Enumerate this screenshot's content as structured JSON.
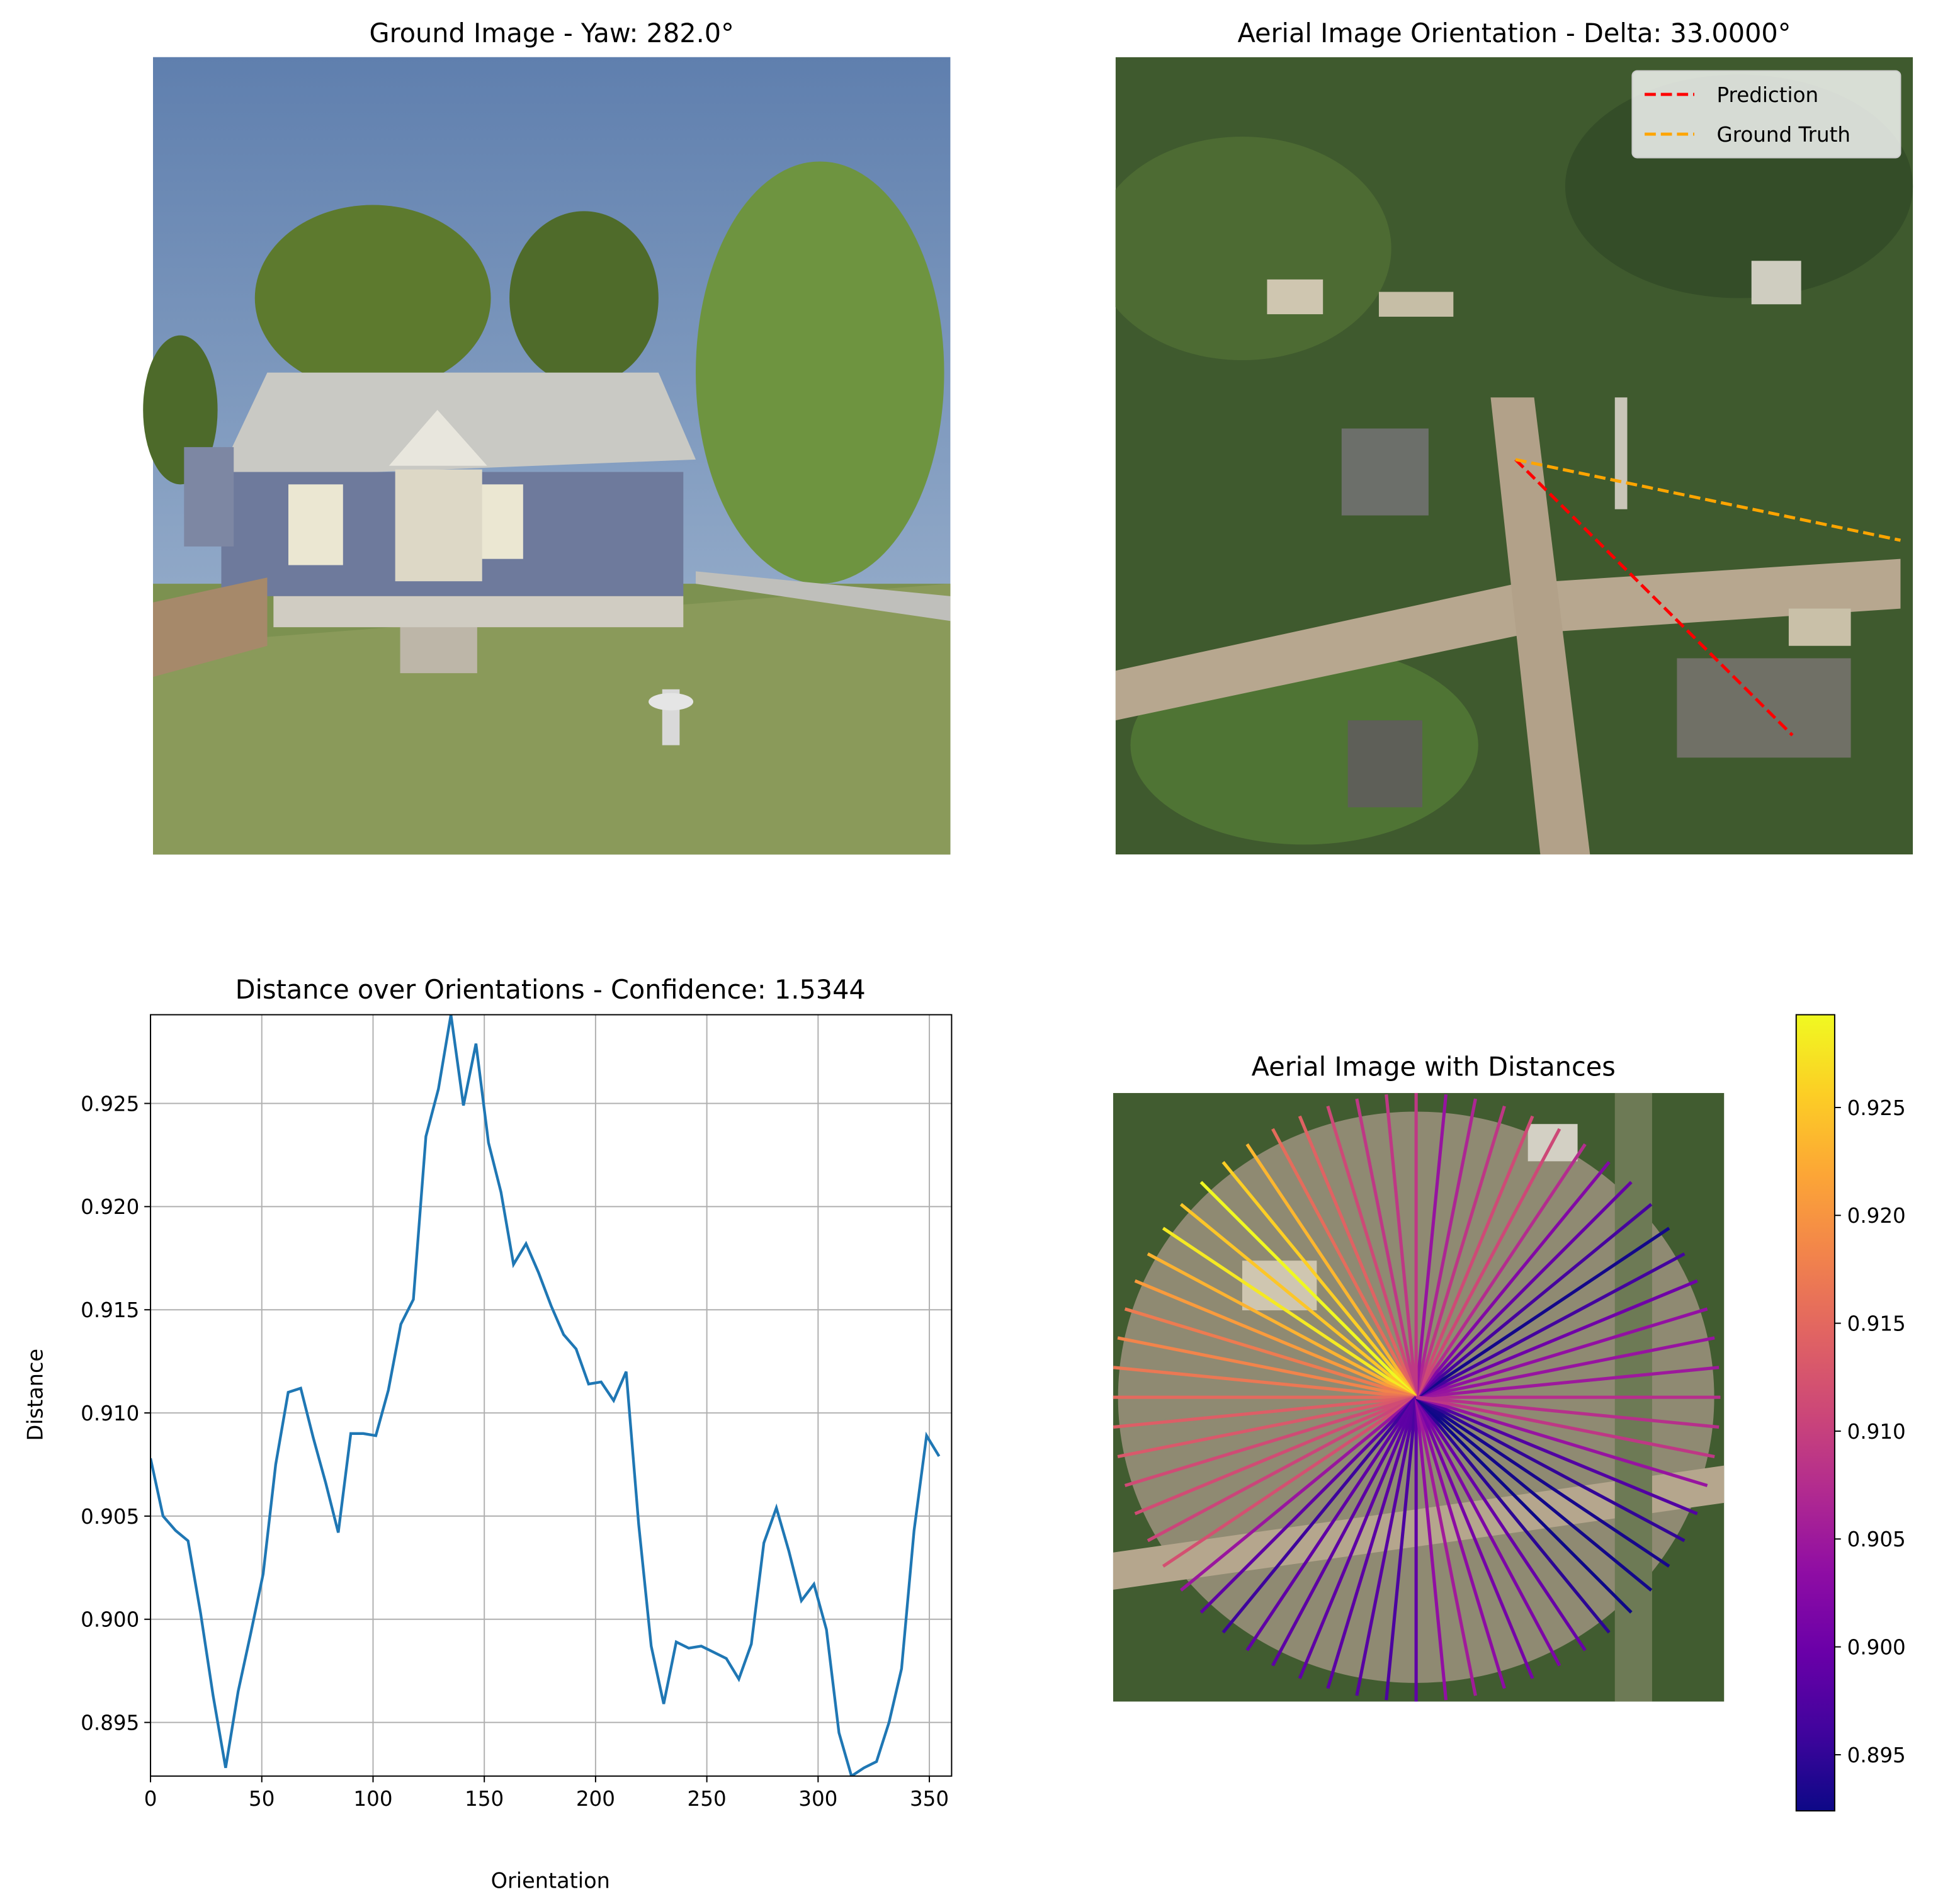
{
  "chart_data": [
    {
      "type": "line",
      "title": "Distance over Orientations - Confidence: 1.5344",
      "xlabel": "Orientation",
      "ylabel": "Distance",
      "x": [
        0,
        5.625,
        11.25,
        16.875,
        22.5,
        28.125,
        33.75,
        39.375,
        45,
        50.625,
        56.25,
        61.875,
        67.5,
        73.125,
        78.75,
        84.375,
        90,
        95.625,
        101.25,
        106.875,
        112.5,
        118.125,
        123.75,
        129.375,
        135,
        140.625,
        146.25,
        151.875,
        157.5,
        163.125,
        168.75,
        174.375,
        180,
        185.625,
        191.25,
        196.875,
        202.5,
        208.125,
        213.75,
        219.375,
        225,
        230.625,
        236.25,
        241.875,
        247.5,
        253.125,
        258.75,
        264.375,
        270,
        275.625,
        281.25,
        286.875,
        292.5,
        298.125,
        303.75,
        309.375,
        315,
        320.625,
        326.25,
        331.875,
        337.5,
        343.125,
        348.75,
        354.375
      ],
      "series": [
        {
          "name": "Distance",
          "color": "#1f77b4",
          "values": [
            0.9078,
            0.905,
            0.9043,
            0.9038,
            0.9003,
            0.8963,
            0.8928,
            0.8965,
            0.8993,
            0.9022,
            0.9075,
            0.911,
            0.9112,
            0.9088,
            0.9066,
            0.9042,
            0.909,
            0.909,
            0.9089,
            0.9111,
            0.9143,
            0.9155,
            0.9234,
            0.9257,
            0.9293,
            0.9249,
            0.9279,
            0.9231,
            0.9207,
            0.9172,
            0.9182,
            0.9168,
            0.9152,
            0.9138,
            0.9131,
            0.9114,
            0.9115,
            0.9106,
            0.912,
            0.9046,
            0.8987,
            0.8959,
            0.8989,
            0.8986,
            0.8987,
            0.8984,
            0.8981,
            0.8971,
            0.8988,
            0.9037,
            0.9054,
            0.9033,
            0.9009,
            0.9017,
            0.8995,
            0.8945,
            0.8924,
            0.8928,
            0.8931,
            0.895,
            0.8976,
            0.9043,
            0.9089,
            0.9079
          ]
        }
      ],
      "xlim": [
        0,
        360
      ],
      "xticks": [
        0,
        50,
        100,
        150,
        200,
        250,
        300,
        350
      ],
      "ylim": [
        0.8924,
        0.9293
      ],
      "yticks": [
        0.895,
        {
          "value": 0.9,
          "label": "0.900"
        },
        0.905,
        {
          "value": 0.91,
          "label": "0.910"
        },
        0.915,
        {
          "value": 0.92,
          "label": "0.920"
        },
        0.925
      ],
      "grid": true
    },
    {
      "type": "rays",
      "title": "Aerial Image with Distances",
      "colormap": "plasma",
      "clim": [
        0.8924,
        0.9293
      ],
      "cticks": [
        0.895,
        {
          "value": 0.9,
          "label": "0.900"
        },
        0.905,
        {
          "value": 0.91,
          "label": "0.910"
        },
        0.915,
        {
          "value": 0.92,
          "label": "0.920"
        },
        0.925
      ]
    }
  ],
  "ground_panel": {
    "title": "Ground Image - Yaw: 282.0°"
  },
  "aerial_panel": {
    "title": "Aerial Image Orientation - Delta: 33.0000°",
    "legend": [
      "Prediction",
      "Ground Truth"
    ]
  }
}
